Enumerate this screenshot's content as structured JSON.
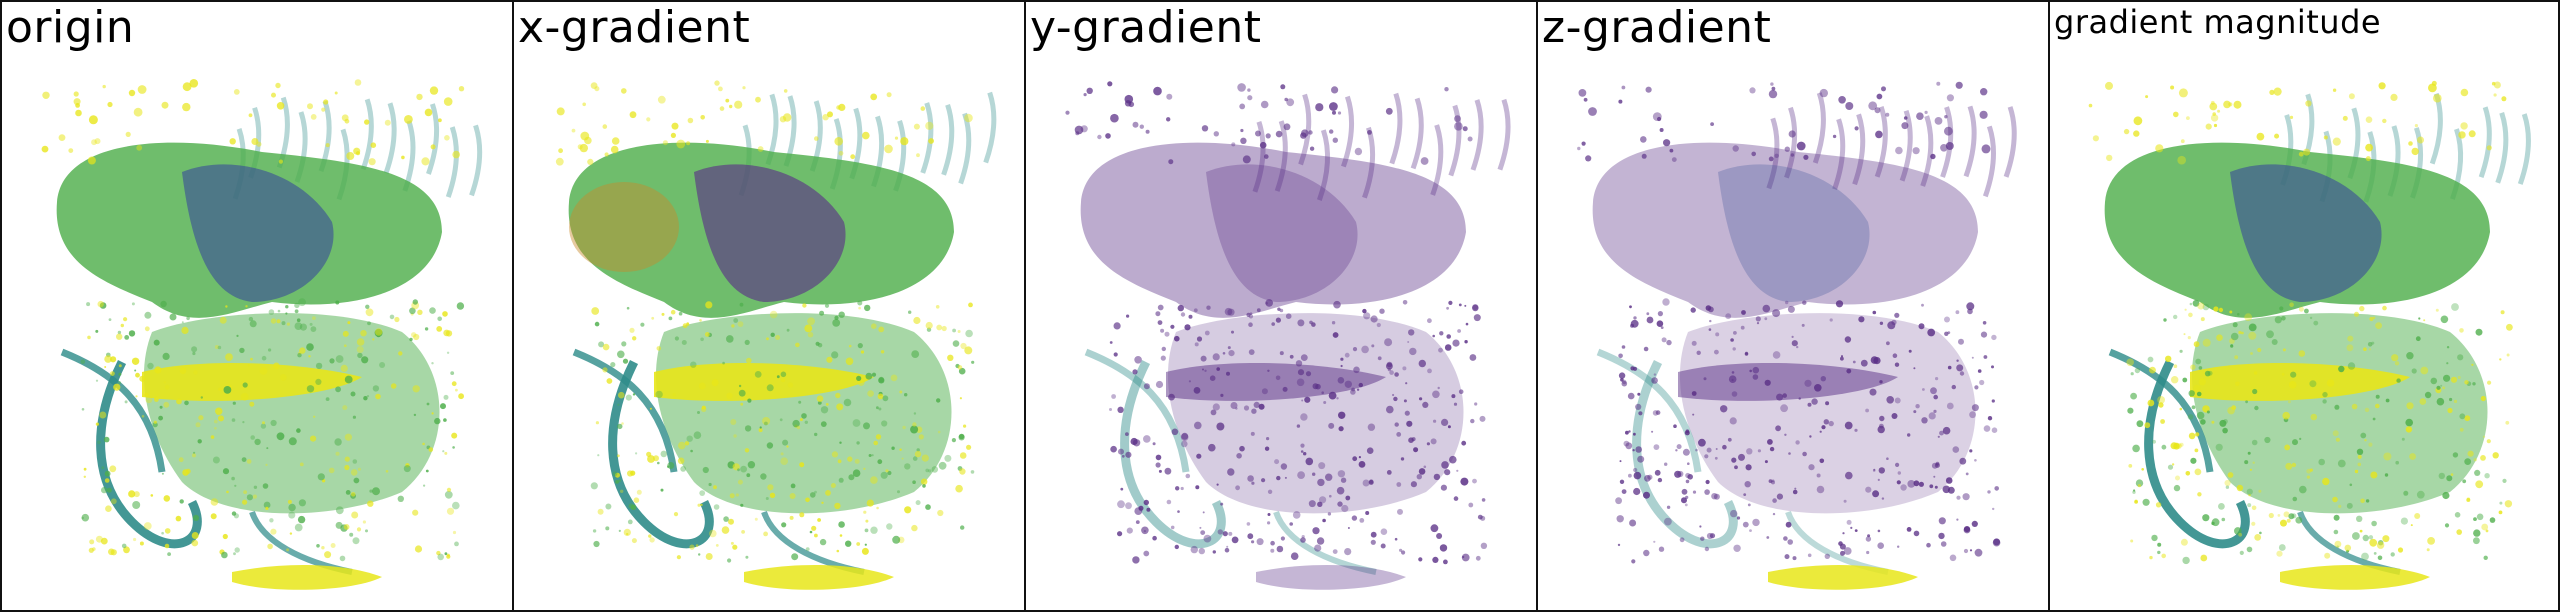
{
  "panels": [
    {
      "label": "origin",
      "variant": "origin"
    },
    {
      "label": "x-gradient",
      "variant": "x"
    },
    {
      "label": "y-gradient",
      "variant": "y"
    },
    {
      "label": "z-gradient",
      "variant": "z"
    },
    {
      "label": "gradient magnitude",
      "variant": "mag"
    }
  ],
  "colors": {
    "yellow": "#e8e619",
    "green": "#4dae4a",
    "teal": "#2f8c8a",
    "blue": "#3b4f96",
    "purple": "#5a2f86",
    "orange": "#c88a2a"
  }
}
